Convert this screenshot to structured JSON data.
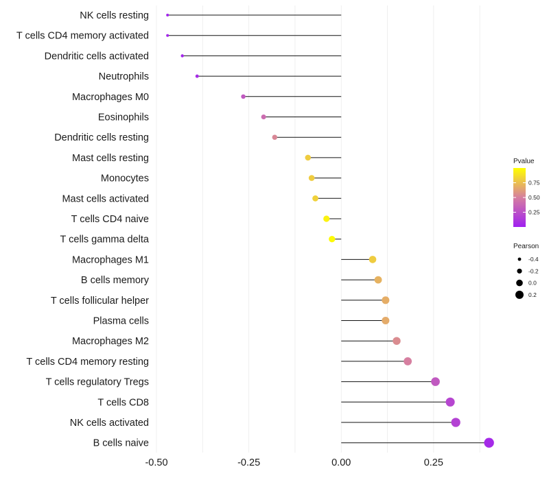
{
  "chart_data": {
    "type": "lollipop",
    "categories": [
      "NK cells resting",
      "T cells CD4 memory activated",
      "Dendritic cells activated",
      "Neutrophils",
      "Macrophages M0",
      "Eosinophils",
      "Dendritic cells resting",
      "Mast cells resting",
      "Monocytes",
      "Mast cells activated",
      "T cells CD4 naive",
      "T cells gamma delta",
      "Macrophages M1",
      "B cells memory",
      "T cells follicular helper",
      "Plasma cells",
      "Macrophages M2",
      "T cells CD4 memory resting",
      "T cells regulatory  Tregs",
      "T cells CD8",
      "NK cells activated",
      "B cells naive"
    ],
    "pearson": [
      -0.47,
      -0.47,
      -0.43,
      -0.39,
      -0.265,
      -0.21,
      -0.18,
      -0.09,
      -0.08,
      -0.07,
      -0.04,
      -0.025,
      0.085,
      0.1,
      0.12,
      0.12,
      0.15,
      0.18,
      0.255,
      0.295,
      0.31,
      0.4
    ],
    "pvalue": [
      0.02,
      0.03,
      0.03,
      0.06,
      0.3,
      0.4,
      0.53,
      0.8,
      0.8,
      0.82,
      0.95,
      0.98,
      0.8,
      0.7,
      0.68,
      0.67,
      0.55,
      0.5,
      0.3,
      0.2,
      0.18,
      0.05
    ],
    "xlim": [
      -0.5,
      0.41
    ],
    "x_ticks": [
      -0.5,
      -0.25,
      0.0,
      0.25
    ],
    "x_tick_labels": [
      "-0.50",
      "-0.25",
      "0.00",
      "0.25"
    ],
    "xlabel": "",
    "ylabel": "",
    "legend_position": "right",
    "color_legend": {
      "title": "Pvalue",
      "ticks": [
        0.75,
        0.5,
        0.25
      ],
      "tick_labels": [
        "0.75",
        "0.50",
        "0.25"
      ],
      "range": [
        0.0,
        1.0
      ],
      "low_color": "#a020f0",
      "mid_color": "#d67fa0",
      "high_color": "#ffff00"
    },
    "size_legend": {
      "title": "Pearson",
      "values": [
        -0.4,
        -0.2,
        0.0,
        0.2
      ],
      "labels": [
        "-0.4",
        "-0.2",
        "0.0",
        "0.2"
      ]
    },
    "grid": true
  }
}
